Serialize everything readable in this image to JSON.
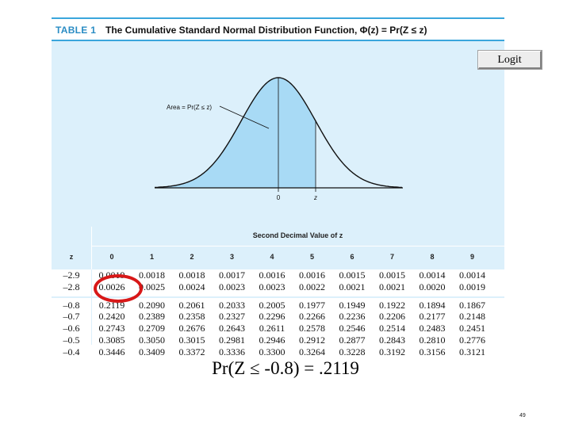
{
  "figure": {
    "table_label": "TABLE 1",
    "table_title": "The Cumulative Standard Normal Distribution Function, Φ(z) = Pr(Z ≤ z)",
    "area_label": "Area = Pr(Z ≤ z)",
    "axis_zero": "0",
    "axis_z": "z",
    "second_decimal_label": "Second Decimal Value of z",
    "z_header": "z",
    "column_headers": [
      "0",
      "1",
      "2",
      "3",
      "4",
      "5",
      "6",
      "7",
      "8",
      "9"
    ],
    "rows": [
      {
        "z": "–2.9",
        "values": [
          "0.0019",
          "0.0018",
          "0.0018",
          "0.0017",
          "0.0016",
          "0.0016",
          "0.0015",
          "0.0015",
          "0.0014",
          "0.0014"
        ]
      },
      {
        "z": "–2.8",
        "values": [
          "0.0026",
          "0.0025",
          "0.0024",
          "0.0023",
          "0.0023",
          "0.0022",
          "0.0021",
          "0.0021",
          "0.0020",
          "0.0019"
        ]
      },
      {
        "z": "–0.8",
        "values": [
          "0.2119",
          "0.2090",
          "0.2061",
          "0.2033",
          "0.2005",
          "0.1977",
          "0.1949",
          "0.1922",
          "0.1894",
          "0.1867"
        ]
      },
      {
        "z": "–0.7",
        "values": [
          "0.2420",
          "0.2389",
          "0.2358",
          "0.2327",
          "0.2296",
          "0.2266",
          "0.2236",
          "0.2206",
          "0.2177",
          "0.2148"
        ]
      },
      {
        "z": "–0.6",
        "values": [
          "0.2743",
          "0.2709",
          "0.2676",
          "0.2643",
          "0.2611",
          "0.2578",
          "0.2546",
          "0.2514",
          "0.2483",
          "0.2451"
        ]
      },
      {
        "z": "–0.5",
        "values": [
          "0.3085",
          "0.3050",
          "0.3015",
          "0.2981",
          "0.2946",
          "0.2912",
          "0.2877",
          "0.2843",
          "0.2810",
          "0.2776"
        ]
      },
      {
        "z": "–0.4",
        "values": [
          "0.3446",
          "0.3409",
          "0.3372",
          "0.3336",
          "0.3300",
          "0.3264",
          "0.3228",
          "0.3192",
          "0.3156",
          "0.3121"
        ]
      }
    ]
  },
  "logit_button": {
    "label": "Logit"
  },
  "caption": {
    "text": "Pr(Z ≤ -0.8) = .2119"
  },
  "page_number": "49",
  "colors": {
    "accent": "#3aa6dc",
    "band": "#dcf0fb",
    "shaded_area": "#a8daf5",
    "highlight": "#d81818"
  }
}
